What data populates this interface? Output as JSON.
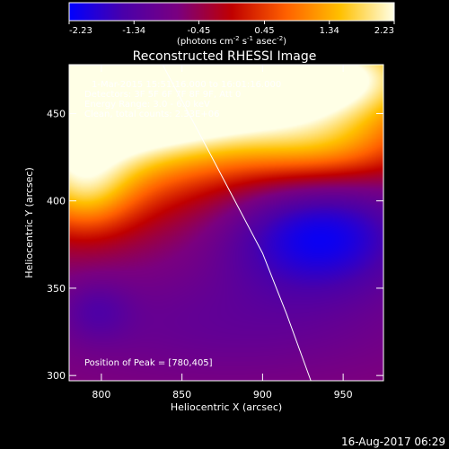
{
  "chart_data": {
    "type": "heatmap",
    "title": "Reconstructed RHESSI Image",
    "xlabel": "Heliocentric X (arcsec)",
    "ylabel": "Heliocentric Y (arcsec)",
    "xlim": [
      780,
      975
    ],
    "ylim": [
      297,
      478
    ],
    "x_ticks": [
      800,
      850,
      900,
      950
    ],
    "y_ticks": [
      300,
      350,
      400,
      450
    ],
    "colorbar": {
      "range": [
        -2.23,
        2.23
      ],
      "ticks": [
        "-2.23",
        "-1.34",
        "-0.45",
        "0.45",
        "1.34",
        "2.23"
      ],
      "unit_prefix": "(photons cm",
      "unit_exp1": "-2",
      "unit_mid": " s",
      "unit_exp2": "-1",
      "unit_mid2": " asec",
      "unit_exp3": "-2",
      "unit_suffix": ")",
      "colors": [
        "#0000ff",
        "#4a00aa",
        "#7a0080",
        "#c00000",
        "#ff6000",
        "#ffc000",
        "#ffffe6"
      ]
    },
    "annotations": [
      "1-Mar-2015 15:51:16.000 to 16:01:16.000",
      "Detectors: 3F 5F 6F 7F 8F 9F, Att 0",
      "Energy Range: 3.0 - 6.0 keV",
      "Clean, total counts: 2.33E+06"
    ],
    "peak_label": "Position of Peak = [780,405]",
    "limb": [
      [
        838,
        478
      ],
      [
        860,
        440
      ],
      [
        880,
        405
      ],
      [
        900,
        370
      ],
      [
        915,
        335
      ],
      [
        930,
        297
      ]
    ],
    "blobs": [
      {
        "x": 790,
        "y": 455,
        "sx": 70,
        "sy": 35,
        "amp": 3.4
      },
      {
        "x": 870,
        "y": 470,
        "sx": 55,
        "sy": 25,
        "amp": 2.4
      },
      {
        "x": 955,
        "y": 470,
        "sx": 45,
        "sy": 20,
        "amp": 2.2
      },
      {
        "x": 940,
        "y": 430,
        "sx": 40,
        "sy": 15,
        "amp": 1.2
      },
      {
        "x": 790,
        "y": 405,
        "sx": 22,
        "sy": 18,
        "amp": 1.2
      },
      {
        "x": 935,
        "y": 380,
        "sx": 40,
        "sy": 22,
        "amp": -1.5
      },
      {
        "x": 880,
        "y": 330,
        "sx": 90,
        "sy": 25,
        "amp": -0.5
      },
      {
        "x": 797,
        "y": 337,
        "sx": 15,
        "sy": 12,
        "amp": -0.5
      }
    ],
    "base": -0.6
  },
  "footer": {
    "timestamp": "16-Aug-2017 06:29"
  }
}
